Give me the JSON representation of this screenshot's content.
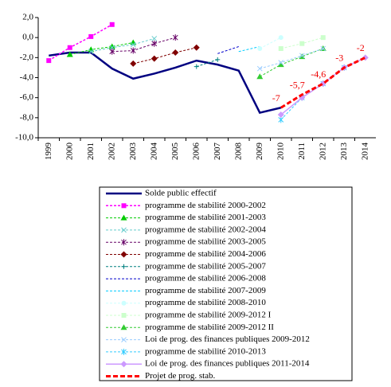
{
  "chart_data": {
    "type": "line",
    "categories": [
      "1999",
      "2000",
      "2001",
      "2002",
      "2003",
      "2004",
      "2005",
      "2006",
      "2007",
      "2008",
      "2009",
      "2010",
      "2011",
      "2012",
      "2013",
      "2014"
    ],
    "ylim": [
      -10,
      2
    ],
    "yticks": [
      {
        "value": 2,
        "label": "2,0"
      },
      {
        "value": 0,
        "label": "0,0"
      },
      {
        "value": -2,
        "label": "-2,0"
      },
      {
        "value": -4,
        "label": "-4,0"
      },
      {
        "value": -6,
        "label": "-6,0"
      },
      {
        "value": -8,
        "label": "-8,0"
      },
      {
        "value": -10,
        "label": "-10,0"
      }
    ],
    "series": [
      {
        "name": "Solde public effectif",
        "color": "#000080",
        "width": 2.5,
        "dash": false,
        "marker": "none",
        "values": [
          -1.8,
          -1.5,
          -1.5,
          -3.1,
          -4.1,
          -3.6,
          -3.0,
          -2.3,
          -2.7,
          -3.3,
          -7.5,
          -7.0,
          null,
          null,
          null,
          null
        ]
      },
      {
        "name": "programme de stabilité 2000-2002",
        "color": "#ff00ff",
        "width": 1.5,
        "dash": true,
        "marker": "square",
        "values": [
          -2.3,
          -1.0,
          0.1,
          1.3,
          null,
          null,
          null,
          null,
          null,
          null,
          null,
          null,
          null,
          null,
          null,
          null
        ]
      },
      {
        "name": "programme de stabilité 2001-2003",
        "color": "#00cc00",
        "width": 1,
        "dash": true,
        "marker": "triangle",
        "values": [
          null,
          -1.7,
          -1.2,
          -0.9,
          -0.5,
          null,
          null,
          null,
          null,
          null,
          null,
          null,
          null,
          null,
          null,
          null
        ]
      },
      {
        "name": "programme de stabilité 2002-2004",
        "color": "#66cccc",
        "width": 1,
        "dash": true,
        "marker": "x",
        "values": [
          null,
          null,
          -1.4,
          -1.0,
          -0.7,
          -0.1,
          null,
          null,
          null,
          null,
          null,
          null,
          null,
          null,
          null,
          null
        ]
      },
      {
        "name": "programme de stabilité 2003-2005",
        "color": "#660066",
        "width": 1,
        "dash": true,
        "marker": "star",
        "values": [
          null,
          null,
          null,
          -1.4,
          -1.3,
          -0.6,
          0.0,
          null,
          null,
          null,
          null,
          null,
          null,
          null,
          null,
          null
        ]
      },
      {
        "name": "programme de stabilité 2004-2006",
        "color": "#800000",
        "width": 1,
        "dash": true,
        "marker": "diamond",
        "values": [
          null,
          null,
          null,
          null,
          -2.6,
          -2.1,
          -1.5,
          -1.0,
          null,
          null,
          null,
          null,
          null,
          null,
          null,
          null
        ]
      },
      {
        "name": "programme de stabilité 2005-2007",
        "color": "#008080",
        "width": 1,
        "dash": true,
        "marker": "plus",
        "values": [
          null,
          null,
          null,
          null,
          null,
          null,
          null,
          -2.9,
          -2.2,
          null,
          null,
          null,
          null,
          null,
          null,
          null
        ]
      },
      {
        "name": "programme de stabilité 2006-2008",
        "color": "#0000cc",
        "width": 1,
        "dash": true,
        "marker": "none",
        "values": [
          null,
          null,
          null,
          null,
          null,
          null,
          null,
          null,
          -1.6,
          -0.9,
          null,
          null,
          null,
          null,
          null,
          null
        ]
      },
      {
        "name": "programme de stabilité 2007-2009",
        "color": "#00ccff",
        "width": 1,
        "dash": true,
        "marker": "none",
        "values": [
          null,
          null,
          null,
          null,
          null,
          null,
          null,
          null,
          null,
          -1.4,
          -0.9,
          null,
          null,
          null,
          null,
          null
        ]
      },
      {
        "name": "programme de stabilité 2008-2010",
        "color": "#ccffff",
        "width": 1,
        "dash": true,
        "marker": "circle",
        "values": [
          null,
          null,
          null,
          null,
          null,
          null,
          null,
          null,
          null,
          null,
          -1.1,
          0.0,
          null,
          null,
          null,
          null
        ]
      },
      {
        "name": "programme de stabilité 2009-2012 I",
        "color": "#ccffcc",
        "width": 1,
        "dash": true,
        "marker": "square",
        "values": [
          null,
          null,
          null,
          null,
          null,
          null,
          null,
          null,
          null,
          null,
          null,
          -1.1,
          -0.6,
          0.0,
          null,
          null
        ]
      },
      {
        "name": "programme de stabilité 2009-2012 II",
        "color": "#33cc33",
        "width": 1,
        "dash": true,
        "marker": "triangle",
        "values": [
          null,
          null,
          null,
          null,
          null,
          null,
          null,
          null,
          null,
          null,
          -3.9,
          -2.7,
          -1.9,
          -1.1,
          null,
          null
        ]
      },
      {
        "name": "Loi de prog. des finances publiques 2009-2012",
        "color": "#99ccff",
        "width": 1,
        "dash": true,
        "marker": "x",
        "values": [
          null,
          null,
          null,
          null,
          null,
          null,
          null,
          null,
          null,
          null,
          -3.1,
          -2.5,
          -1.8,
          -1.1,
          null,
          null
        ]
      },
      {
        "name": "programme de stabilité 2010-2013",
        "color": "#33ccff",
        "width": 1,
        "dash": true,
        "marker": "star",
        "values": [
          null,
          null,
          null,
          null,
          null,
          null,
          null,
          null,
          null,
          null,
          null,
          -8.2,
          -6.0,
          -4.6,
          -3.0,
          null
        ]
      },
      {
        "name": "Loi de prog. des finances publiques 2011-2014",
        "color": "#cc99ff",
        "width": 1.5,
        "dash": false,
        "marker": "diamond",
        "values": [
          null,
          null,
          null,
          null,
          null,
          null,
          null,
          null,
          null,
          null,
          null,
          -7.7,
          -6.0,
          -4.6,
          -3.0,
          -2.0
        ]
      },
      {
        "name": "Projet de prog. stab.",
        "color": "#ff0000",
        "width": 3,
        "dash": true,
        "marker": "none",
        "values": [
          null,
          null,
          null,
          null,
          null,
          null,
          null,
          null,
          null,
          null,
          null,
          -7.0,
          -5.7,
          -4.6,
          -3.0,
          -2.0
        ],
        "value_labels": [
          "",
          "",
          "",
          "",
          "",
          "",
          "",
          "",
          "",
          "",
          "",
          "-7",
          "-5,7",
          "-4,6",
          "-3",
          "-2"
        ]
      }
    ]
  }
}
